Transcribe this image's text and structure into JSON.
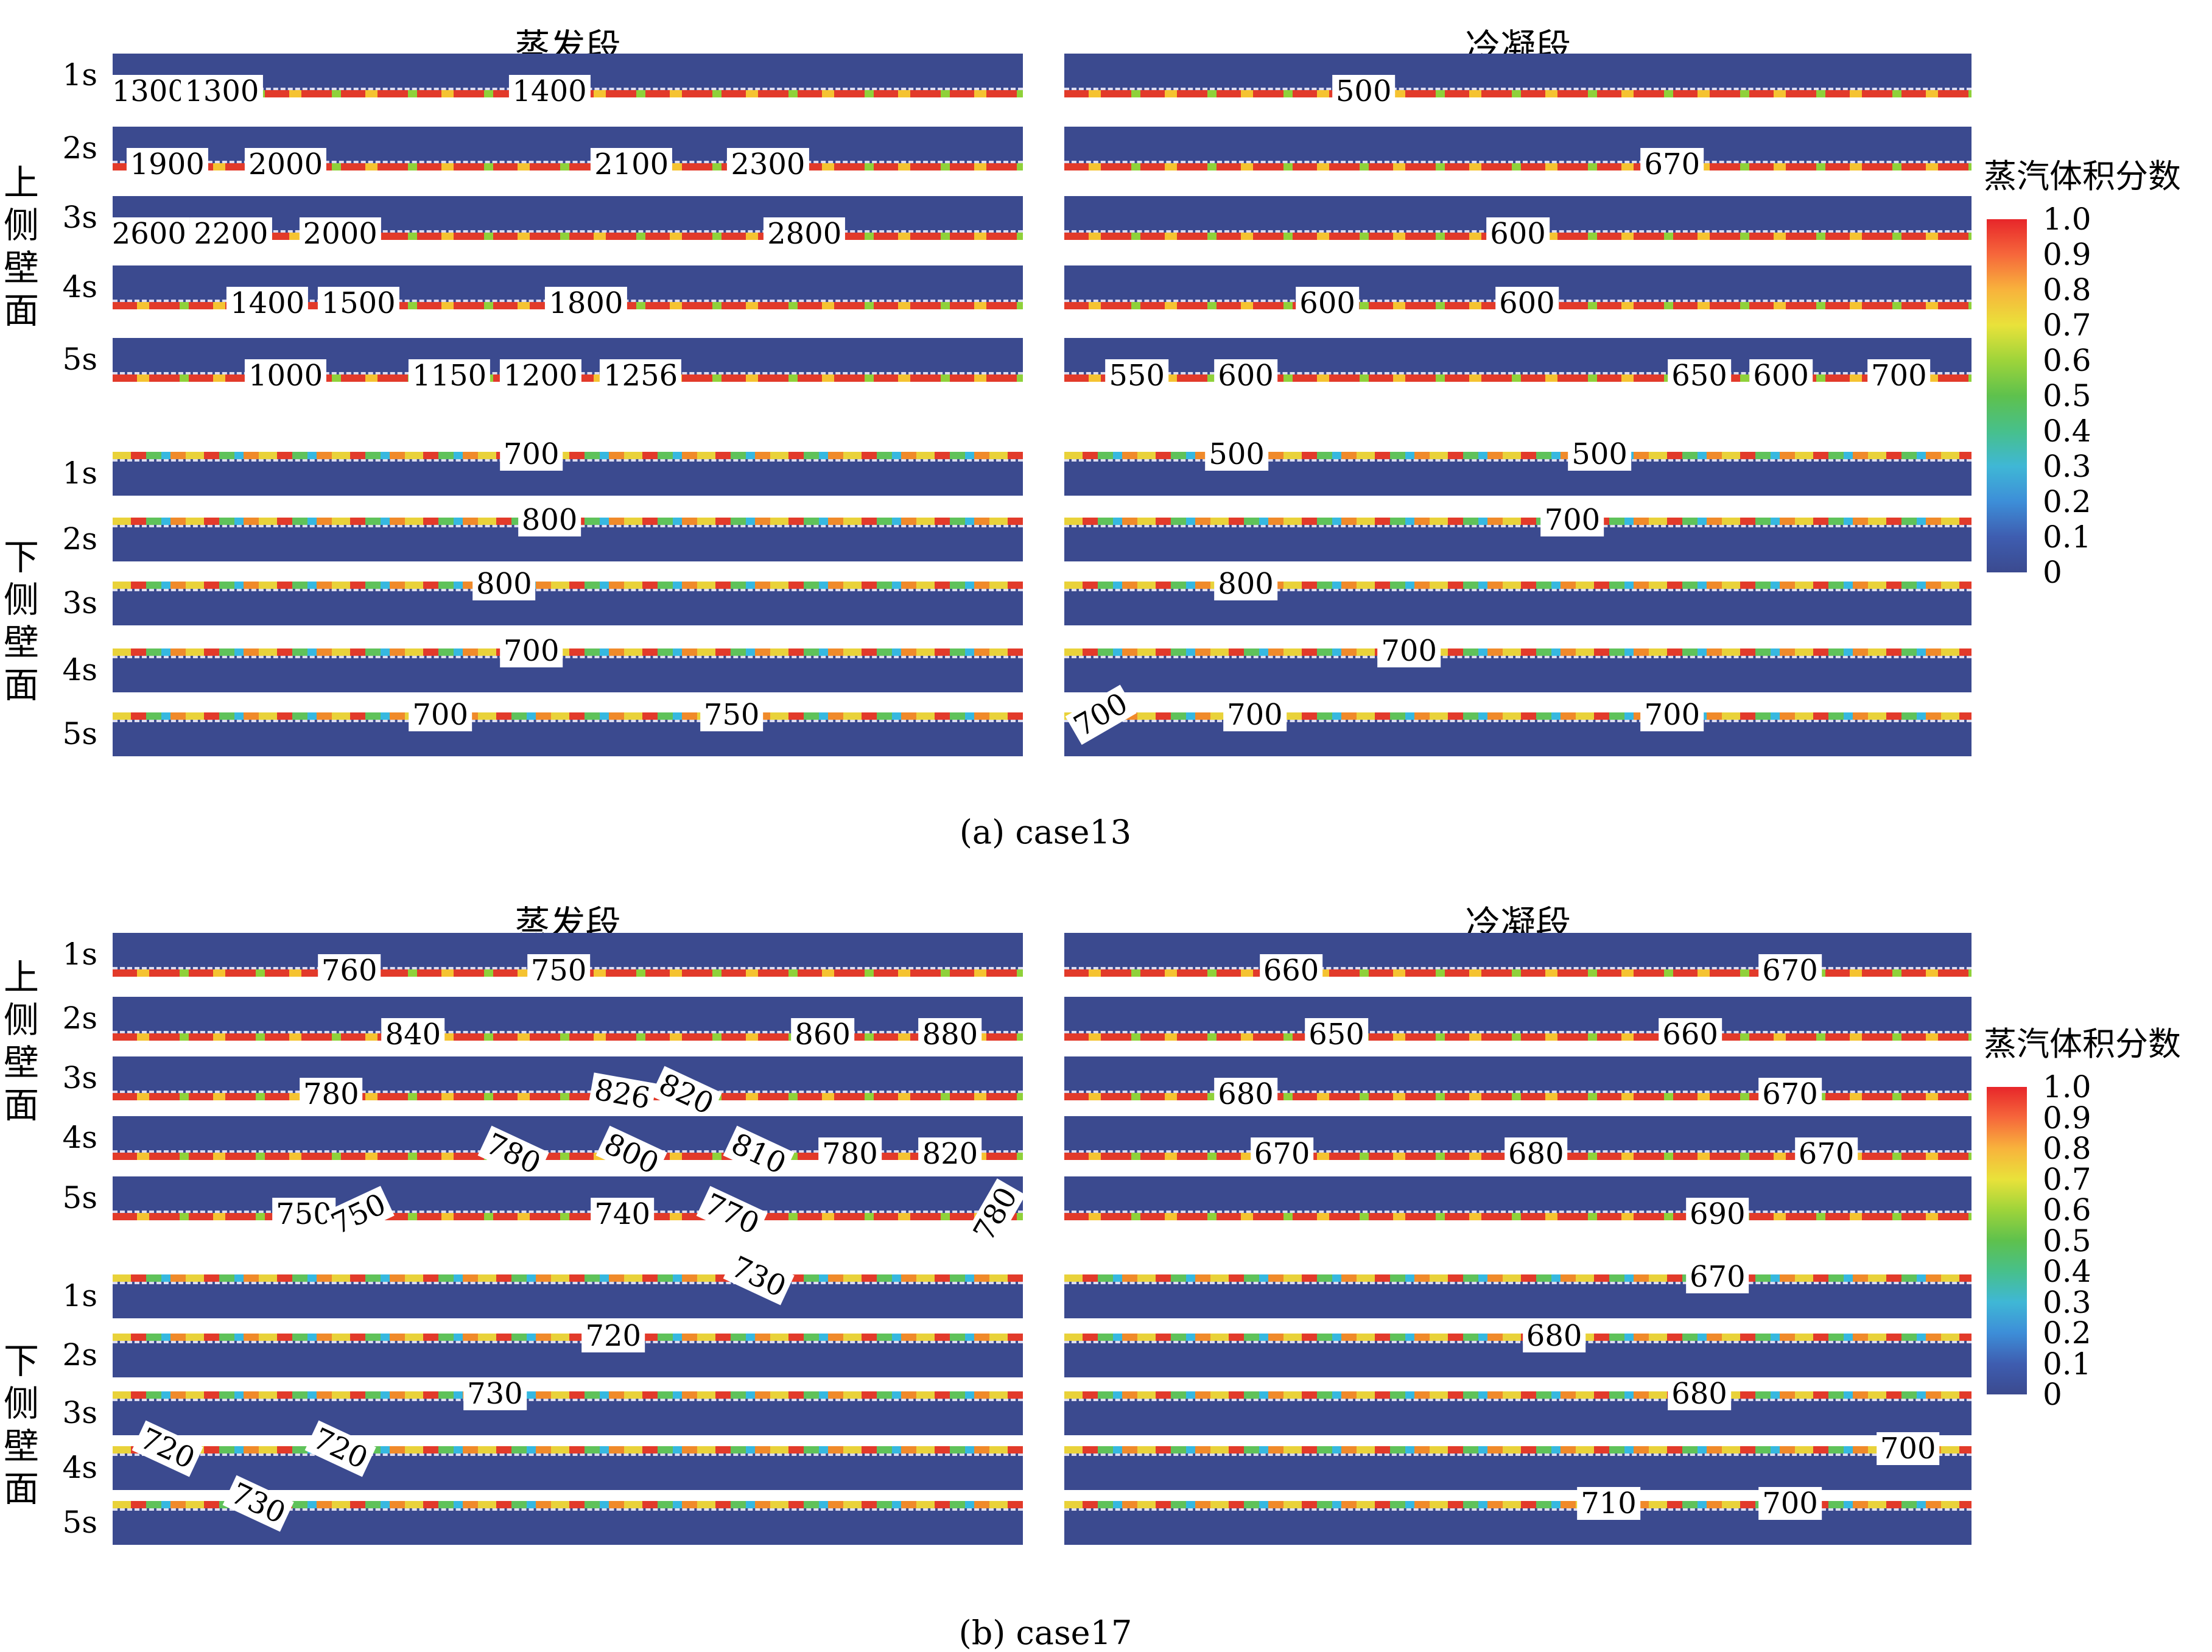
{
  "column_headers": {
    "left": "蒸发段",
    "right": "冷凝段"
  },
  "side_labels": {
    "upper": "上侧壁面",
    "lower": "下侧壁面"
  },
  "colorbar": {
    "title": "蒸汽体积分数",
    "ticks": [
      "1.0",
      "0.9",
      "0.8",
      "0.7",
      "0.6",
      "0.5",
      "0.4",
      "0.3",
      "0.2",
      "0.1",
      "0"
    ]
  },
  "colors": {
    "background_fluid": "#3b4a8f",
    "vapor": "#e7262a"
  },
  "panels": [
    {
      "title": "(a) case13",
      "upper": {
        "times": [
          "1s",
          "2s",
          "3s",
          "4s",
          "5s"
        ],
        "left": [
          [
            "1300",
            "1300",
            "1400"
          ],
          [
            "1900",
            "2000",
            "2100",
            "2300"
          ],
          [
            "2600",
            "2200",
            "2000",
            "2800"
          ],
          [
            "1400",
            "1500",
            "1800"
          ],
          [
            "1000",
            "1150",
            "1200",
            "1256"
          ]
        ],
        "right": [
          [
            "500"
          ],
          [
            "670"
          ],
          [
            "600"
          ],
          [
            "600",
            "600"
          ],
          [
            "550",
            "600",
            "650",
            "600",
            "700"
          ]
        ]
      },
      "lower": {
        "times": [
          "1s",
          "2s",
          "3s",
          "4s",
          "5s"
        ],
        "left": [
          [
            "700"
          ],
          [
            "800"
          ],
          [
            "800"
          ],
          [
            "700"
          ],
          [
            "700",
            "750"
          ]
        ],
        "right": [
          [
            "500",
            "500"
          ],
          [
            "700"
          ],
          [
            "800"
          ],
          [
            "700"
          ],
          [
            "700",
            "700",
            "700"
          ]
        ]
      }
    },
    {
      "title": "(b) case17",
      "upper": {
        "times": [
          "1s",
          "2s",
          "3s",
          "4s",
          "5s"
        ],
        "left": [
          [
            "760",
            "750"
          ],
          [
            "840",
            "860",
            "880"
          ],
          [
            "780",
            "826",
            "820"
          ],
          [
            "780",
            "800",
            "810",
            "780",
            "820"
          ],
          [
            "750",
            "750",
            "740",
            "770",
            "780"
          ]
        ],
        "right": [
          [
            "660",
            "670"
          ],
          [
            "650",
            "660"
          ],
          [
            "680",
            "670"
          ],
          [
            "670",
            "680",
            "670"
          ],
          [
            "690"
          ]
        ]
      },
      "lower": {
        "times": [
          "1s",
          "2s",
          "3s",
          "4s",
          "5s"
        ],
        "left": [
          [
            "730"
          ],
          [
            "720"
          ],
          [
            "730"
          ],
          [
            "720",
            "720"
          ],
          [
            "730"
          ]
        ],
        "right": [
          [
            "670"
          ],
          [
            "680"
          ],
          [
            "680"
          ],
          [
            "700"
          ],
          [
            "710",
            "700"
          ]
        ]
      }
    }
  ]
}
